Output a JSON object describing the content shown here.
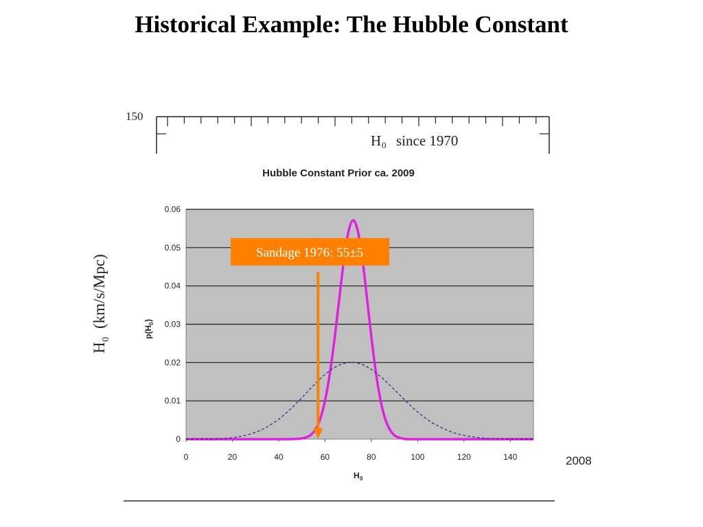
{
  "slide": {
    "title": "Historical Example: The Hubble Constant"
  },
  "background_plot": {
    "y_tick_label": "150",
    "inset_label": "since 1970",
    "inset_label_symbol": "H",
    "inset_label_subscript": "0",
    "ylabel_symbol": "H",
    "ylabel_subscript": "0",
    "ylabel_units": "(km/s/Mpc)",
    "partial_tick_label": "2008"
  },
  "annotation": {
    "text": "Sandage 1976: 55±5",
    "arrow_x_value": 57,
    "box_color": "#ff8000",
    "text_color": "#ffffff"
  },
  "chart_data": {
    "type": "line",
    "title": "Hubble Constant Prior ca. 2009",
    "xlabel": "H",
    "xlabel_subscript": "0",
    "ylabel": "p(H",
    "ylabel_subscript": "0",
    "ylabel_suffix": ")",
    "xlim": [
      0,
      150
    ],
    "ylim": [
      0,
      0.06
    ],
    "x_ticks": [
      0,
      20,
      40,
      60,
      80,
      100,
      120,
      140
    ],
    "y_ticks": [
      0,
      0.01,
      0.02,
      0.03,
      0.04,
      0.05,
      0.06
    ],
    "y_tick_labels": [
      "0",
      "0.01",
      "0.02",
      "0.03",
      "0.04",
      "0.05",
      "0.06"
    ],
    "plot_background": "#c0c0c0",
    "grid": "horizontal",
    "series": [
      {
        "style": "solid",
        "color": "#e020e0",
        "x": [
          0,
          40,
          48,
          50,
          52,
          54,
          56,
          58,
          60,
          62,
          64,
          66,
          68,
          70,
          72,
          74,
          76,
          78,
          80,
          82,
          84,
          86,
          88,
          90,
          92,
          94,
          96,
          100,
          150
        ],
        "y": [
          0,
          0,
          0.0001,
          0.0002,
          0.0005,
          0.0012,
          0.0026,
          0.0054,
          0.01,
          0.0168,
          0.0256,
          0.0358,
          0.0459,
          0.0538,
          0.0571,
          0.0548,
          0.0477,
          0.0375,
          0.0268,
          0.0173,
          0.0101,
          0.0053,
          0.0025,
          0.001,
          0.0004,
          0.0001,
          0,
          0,
          0
        ]
      },
      {
        "style": "dashed",
        "color": "#2a2a7a",
        "x": [
          0,
          10,
          15,
          20,
          25,
          30,
          35,
          40,
          45,
          50,
          55,
          60,
          65,
          70,
          75,
          80,
          85,
          90,
          95,
          100,
          105,
          110,
          115,
          120,
          125,
          130,
          135,
          140,
          150
        ],
        "y": [
          0,
          0,
          0.0001,
          0.0004,
          0.0009,
          0.0018,
          0.0032,
          0.0052,
          0.0078,
          0.0108,
          0.014,
          0.0169,
          0.019,
          0.02,
          0.0197,
          0.0182,
          0.0158,
          0.0129,
          0.0099,
          0.0071,
          0.0048,
          0.0031,
          0.0018,
          0.001,
          0.0005,
          0.0002,
          0.0001,
          0,
          0
        ]
      }
    ]
  }
}
